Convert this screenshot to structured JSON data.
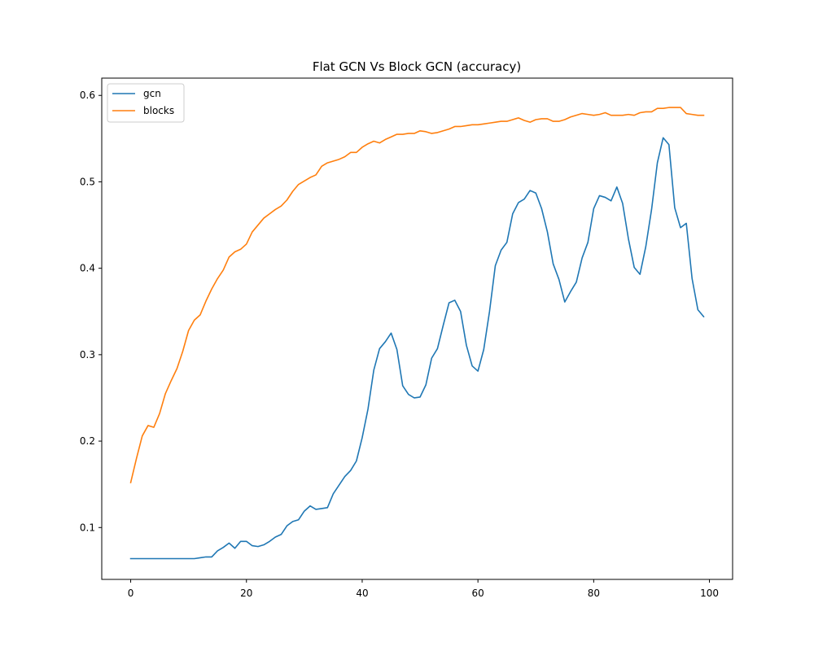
{
  "chart_data": {
    "type": "line",
    "title": "Flat GCN Vs Block GCN (accuracy)",
    "xlabel": "",
    "ylabel": "",
    "xlim": [
      -5,
      104
    ],
    "ylim": [
      0.04,
      0.62
    ],
    "xticks": [
      0,
      20,
      40,
      60,
      80,
      100
    ],
    "yticks": [
      0.1,
      0.2,
      0.3,
      0.4,
      0.5,
      0.6
    ],
    "xtick_labels": [
      "0",
      "20",
      "40",
      "60",
      "80",
      "100"
    ],
    "ytick_labels": [
      "0.1",
      "0.2",
      "0.3",
      "0.4",
      "0.5",
      "0.6"
    ],
    "grid": false,
    "legend_position": "top-left",
    "series": [
      {
        "name": "gcn",
        "color": "#1f77b4",
        "values": [
          0.064,
          0.064,
          0.064,
          0.064,
          0.064,
          0.064,
          0.064,
          0.064,
          0.064,
          0.064,
          0.064,
          0.064,
          0.065,
          0.066,
          0.066,
          0.073,
          0.077,
          0.082,
          0.076,
          0.084,
          0.084,
          0.079,
          0.078,
          0.08,
          0.084,
          0.089,
          0.092,
          0.102,
          0.107,
          0.109,
          0.119,
          0.125,
          0.121,
          0.122,
          0.123,
          0.139,
          0.149,
          0.159,
          0.166,
          0.177,
          0.204,
          0.237,
          0.282,
          0.307,
          0.315,
          0.325,
          0.306,
          0.264,
          0.254,
          0.25,
          0.251,
          0.265,
          0.296,
          0.307,
          0.334,
          0.36,
          0.363,
          0.35,
          0.311,
          0.287,
          0.281,
          0.306,
          0.35,
          0.403,
          0.421,
          0.43,
          0.463,
          0.476,
          0.48,
          0.49,
          0.487,
          0.469,
          0.442,
          0.405,
          0.387,
          0.361,
          0.373,
          0.384,
          0.412,
          0.43,
          0.469,
          0.484,
          0.482,
          0.478,
          0.494,
          0.475,
          0.434,
          0.401,
          0.393,
          0.425,
          0.468,
          0.522,
          0.551,
          0.543,
          0.47,
          0.447,
          0.452,
          0.388,
          0.352,
          0.344
        ]
      },
      {
        "name": "blocks",
        "color": "#ff7f0e",
        "values": [
          0.152,
          0.18,
          0.206,
          0.218,
          0.216,
          0.232,
          0.255,
          0.27,
          0.284,
          0.304,
          0.328,
          0.34,
          0.346,
          0.362,
          0.376,
          0.388,
          0.398,
          0.413,
          0.419,
          0.422,
          0.428,
          0.442,
          0.45,
          0.458,
          0.463,
          0.468,
          0.472,
          0.479,
          0.489,
          0.497,
          0.501,
          0.505,
          0.508,
          0.518,
          0.522,
          0.524,
          0.526,
          0.529,
          0.534,
          0.534,
          0.54,
          0.544,
          0.547,
          0.545,
          0.549,
          0.552,
          0.555,
          0.555,
          0.556,
          0.556,
          0.559,
          0.558,
          0.556,
          0.557,
          0.559,
          0.561,
          0.564,
          0.564,
          0.565,
          0.566,
          0.566,
          0.567,
          0.568,
          0.569,
          0.57,
          0.57,
          0.572,
          0.574,
          0.571,
          0.569,
          0.572,
          0.573,
          0.573,
          0.57,
          0.57,
          0.572,
          0.575,
          0.577,
          0.579,
          0.578,
          0.577,
          0.578,
          0.58,
          0.577,
          0.577,
          0.577,
          0.578,
          0.577,
          0.58,
          0.581,
          0.581,
          0.585,
          0.585,
          0.586,
          0.586,
          0.586,
          0.579,
          0.578,
          0.577,
          0.577
        ]
      }
    ]
  }
}
